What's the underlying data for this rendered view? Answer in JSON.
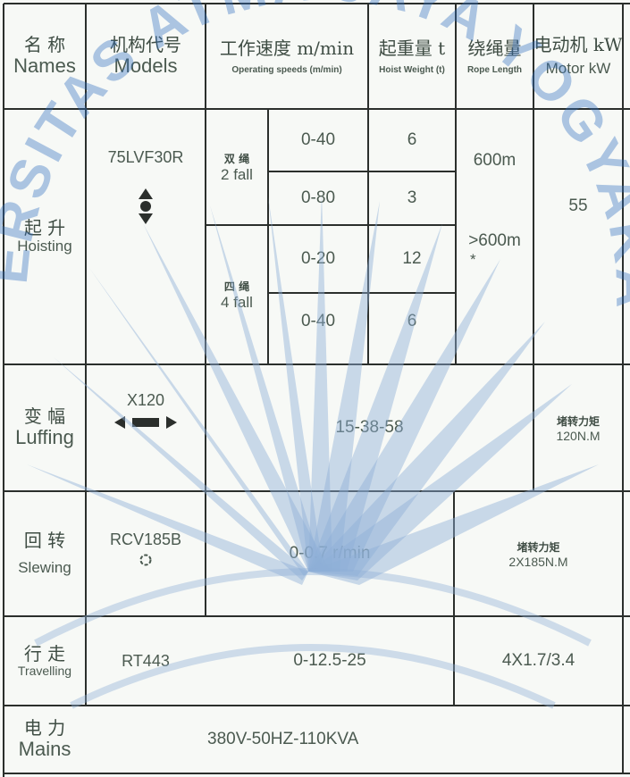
{
  "colors": {
    "line": "#2b2f2c",
    "text": "#4b5a50",
    "watermark": "#2f6fc0",
    "background": "#f7f9f6"
  },
  "watermark": {
    "text": "UNIVERSITAS ATMA JAYA YOGYAKARTA",
    "icon": "sun-rays-logo"
  },
  "headers": {
    "names_zh": "名 称",
    "names_en": "Names",
    "models_zh": "机构代号",
    "models_en": "Models",
    "speed_zh": "工作速度 m/min",
    "speed_en": "Operating speeds (m/min)",
    "hoist_zh": "起重量 t",
    "hoist_en": "Hoist Weight (t)",
    "rope_zh": "绕绳量",
    "rope_en": "Rope Length",
    "motor_zh": "电动机 kW",
    "motor_en": "Motor kW"
  },
  "hoisting": {
    "name_zh": "起 升",
    "name_en": "Hoisting",
    "model": "75LVF30R",
    "fall2_zh": "双 绳",
    "fall2_en": "2 fall",
    "fall4_zh": "四 绳",
    "fall4_en": "4 fall",
    "speeds": [
      "0-40",
      "0-80",
      "0-20",
      "0-40"
    ],
    "weights": [
      "6",
      "3",
      "12",
      "6"
    ],
    "rope_1": "600m",
    "rope_2": ">600m",
    "rope_note": "*",
    "motor": "55"
  },
  "luffing": {
    "name_zh": "变 幅",
    "name_en": "Luffing",
    "model": "X120",
    "speed": "15-38-58",
    "torque_zh": "堵转力矩",
    "torque": "120N.M"
  },
  "slewing": {
    "name_zh": "回 转",
    "name_en": "Slewing",
    "model": "RCV185B",
    "speed": "0-0.7 r/min",
    "torque_zh": "堵转力矩",
    "torque": "2X185N.M"
  },
  "travelling": {
    "name_zh": "行 走",
    "name_en": "Travelling",
    "model": "RT443",
    "speed": "0-12.5-25",
    "motor": "4X1.7/3.4"
  },
  "mains": {
    "name_zh": "电 力",
    "name_en": "Mains",
    "value": "380V-50HZ-110KVA"
  }
}
